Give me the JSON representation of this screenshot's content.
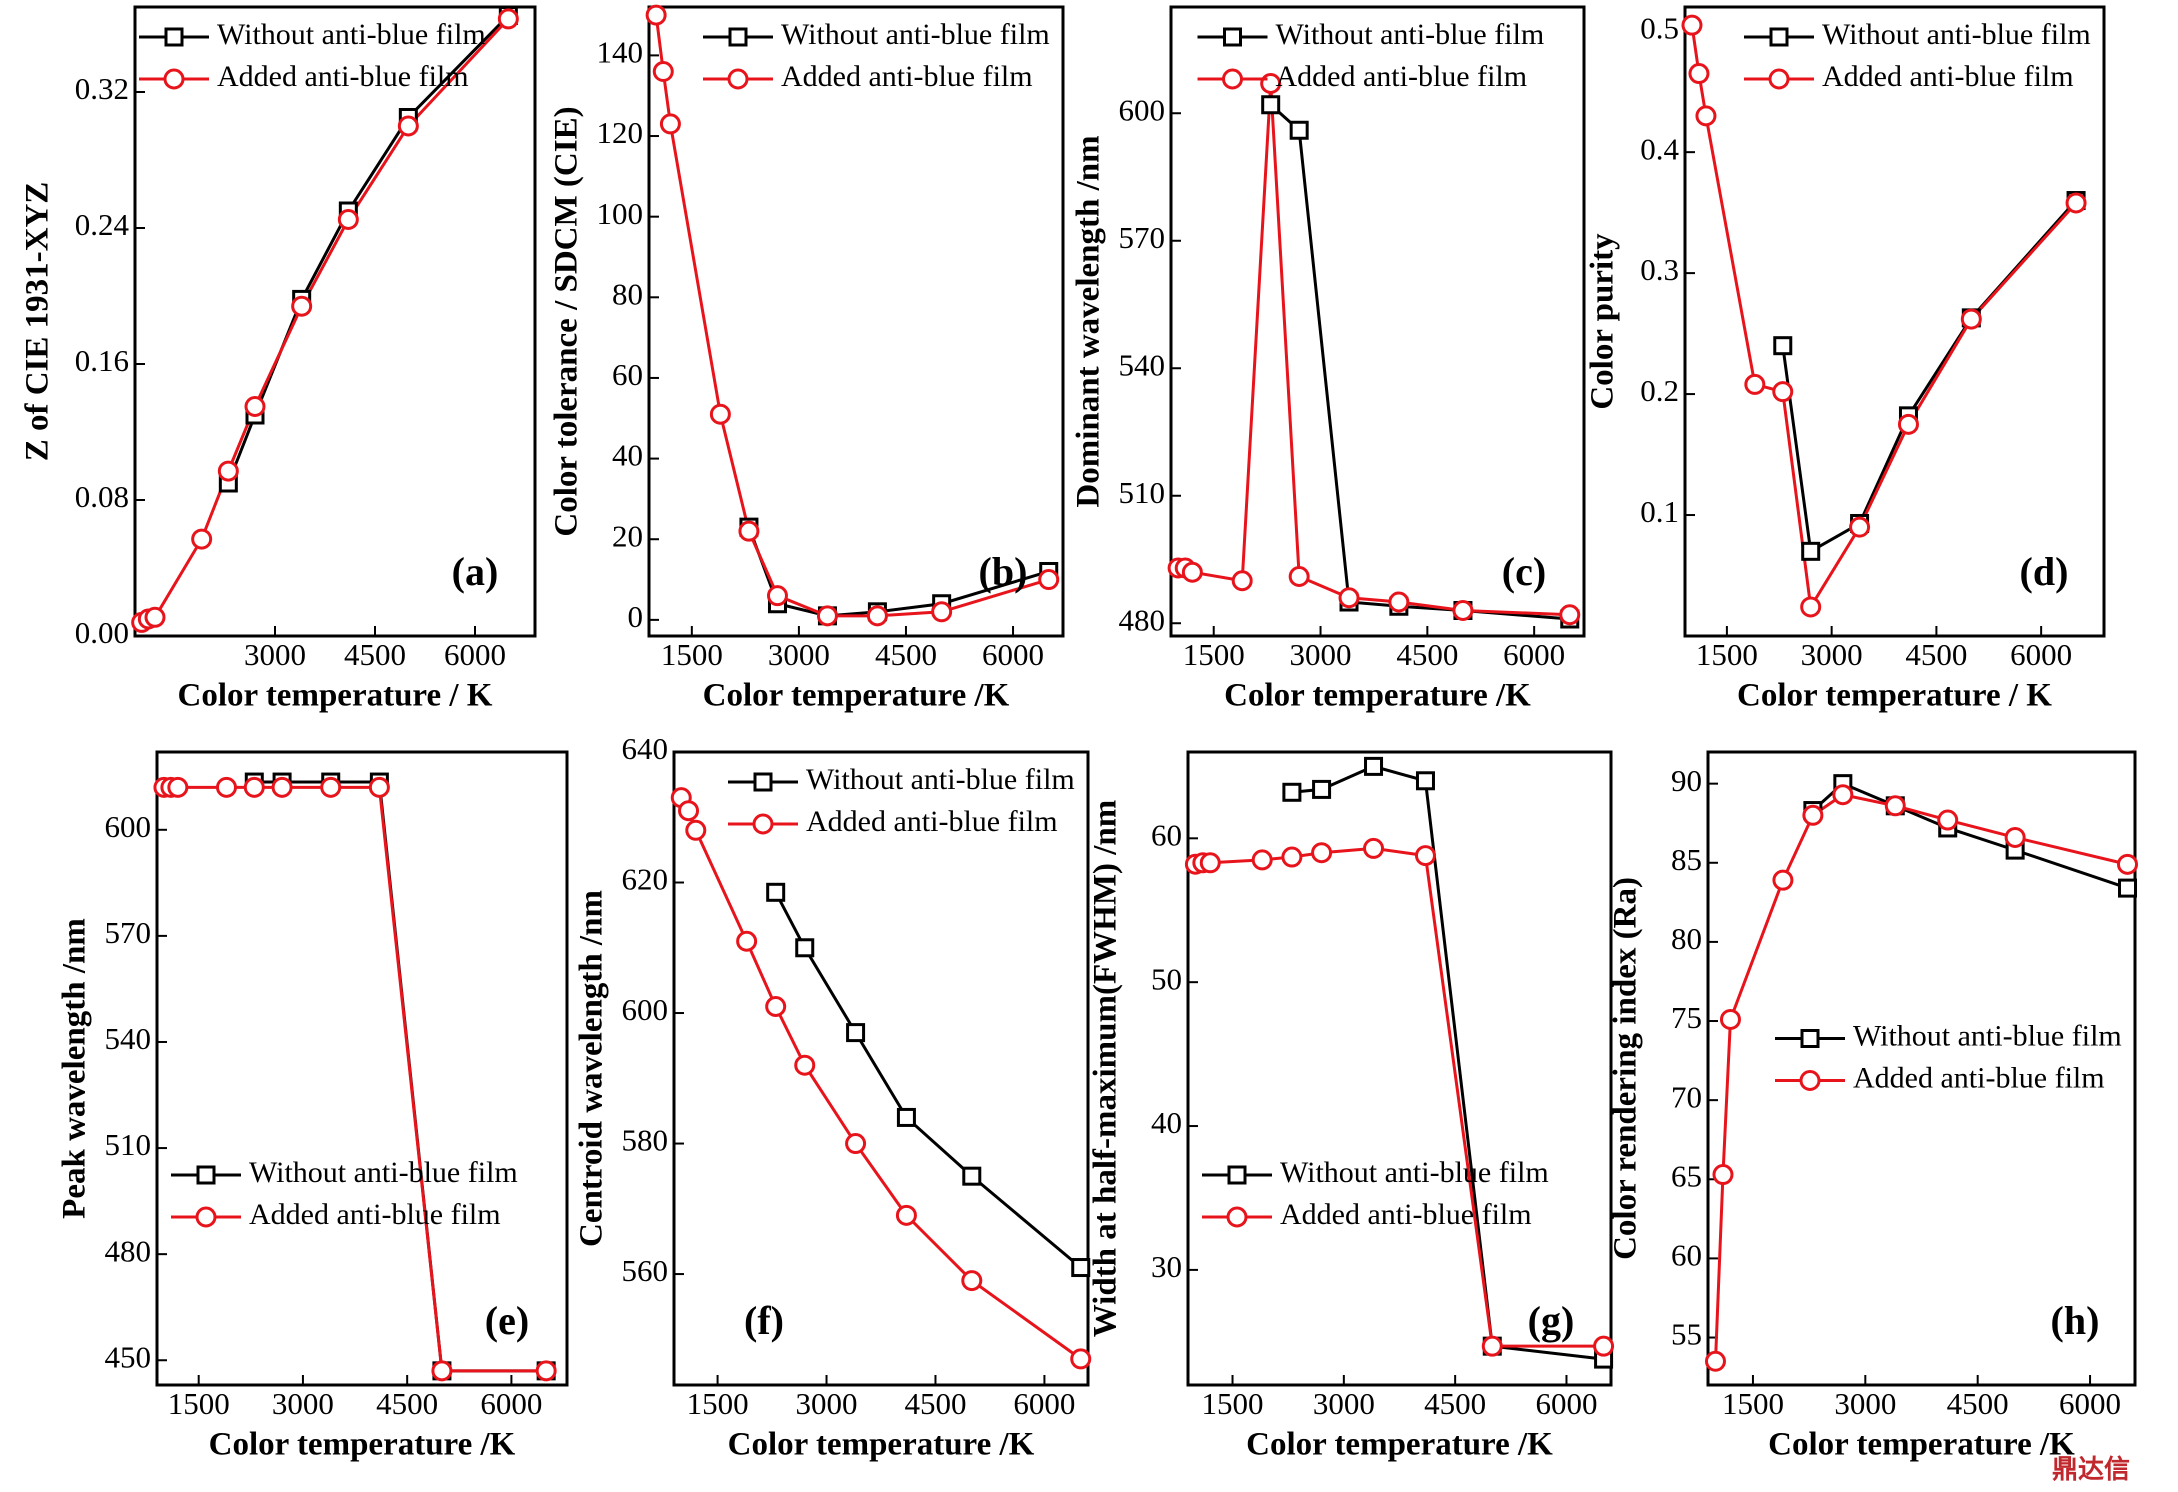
{
  "watermark": "鼎达信",
  "chart_data": [
    {
      "type": "line",
      "panel": "(a)",
      "xlabel": "Color temperature / K",
      "ylabel": "Z of CIE 1931-XYZ",
      "x": [
        1000,
        1100,
        1200,
        1900,
        2300,
        2700,
        3400,
        4100,
        5000,
        6500
      ],
      "series": [
        {
          "name": "Without anti-blue film",
          "color": "#000000",
          "marker": "square",
          "values": [
            null,
            null,
            null,
            null,
            0.09,
            0.13,
            0.198,
            0.25,
            0.305,
            0.365
          ]
        },
        {
          "name": "Added anti-blue film",
          "color": "#e8141c",
          "marker": "circle",
          "values": [
            0.008,
            0.01,
            0.011,
            0.057,
            0.097,
            0.135,
            0.194,
            0.245,
            0.3,
            0.363
          ]
        }
      ],
      "xlim": [
        900,
        6900
      ],
      "xticks": [
        3000,
        4500,
        6000
      ],
      "ylim": [
        0,
        0.37
      ],
      "yticks": [
        {
          "value": 0,
          "label": "0.00"
        },
        {
          "value": 0.08,
          "label": "0.08"
        },
        {
          "value": 0.16,
          "label": "0.16"
        },
        {
          "value": 0.24,
          "label": "0.24"
        },
        {
          "value": 0.32,
          "label": "0.32"
        }
      ],
      "legend": "upper left"
    },
    {
      "type": "line",
      "panel": "(b)",
      "xlabel": "Color temperature /K",
      "ylabel": "Color tolerance / SDCM (CIE)",
      "x": [
        1000,
        1100,
        1200,
        1900,
        2300,
        2700,
        3400,
        4100,
        5000,
        6500
      ],
      "series": [
        {
          "name": "Without anti-blue film",
          "color": "#000000",
          "marker": "square",
          "values": [
            null,
            null,
            null,
            null,
            23,
            4,
            1,
            2,
            4,
            12
          ]
        },
        {
          "name": "Added anti-blue film",
          "color": "#e8141c",
          "marker": "circle",
          "values": [
            150,
            136,
            123,
            51,
            22,
            6,
            1,
            1,
            2,
            10
          ]
        }
      ],
      "xlim": [
        900,
        6700
      ],
      "xticks": [
        1500,
        3000,
        4500,
        6000
      ],
      "ylim": [
        -4,
        152
      ],
      "yticks": [
        0,
        20,
        40,
        60,
        80,
        100,
        120,
        140
      ],
      "legend": "upper right"
    },
    {
      "type": "line",
      "panel": "(c)",
      "xlabel": "Color temperature /K",
      "ylabel": "Dominant wavelength /nm",
      "x": [
        1000,
        1100,
        1200,
        1900,
        2300,
        2700,
        3400,
        4100,
        5000,
        6500
      ],
      "series": [
        {
          "name": "Without anti-blue film",
          "color": "#000000",
          "marker": "square",
          "values": [
            null,
            null,
            null,
            null,
            602,
            596,
            485,
            484,
            483,
            481
          ]
        },
        {
          "name": "Added anti-blue film",
          "color": "#e8141c",
          "marker": "circle",
          "values": [
            493,
            493,
            492,
            490,
            607,
            491,
            486,
            485,
            483,
            482
          ]
        }
      ],
      "xlim": [
        900,
        6700
      ],
      "xticks": [
        1500,
        3000,
        4500,
        6000
      ],
      "ylim": [
        477,
        625
      ],
      "yticks": [
        480,
        510,
        540,
        570,
        600
      ],
      "legend": "upper center"
    },
    {
      "type": "line",
      "panel": "(d)",
      "xlabel": "Color temperature / K",
      "ylabel": "Color purity",
      "x": [
        1000,
        1100,
        1200,
        1900,
        2300,
        2700,
        3400,
        4100,
        5000,
        6500
      ],
      "series": [
        {
          "name": "Without anti-blue film",
          "color": "#000000",
          "marker": "square",
          "values": [
            null,
            null,
            null,
            null,
            0.24,
            0.07,
            0.093,
            0.182,
            0.263,
            0.36
          ]
        },
        {
          "name": "Added anti-blue film",
          "color": "#e8141c",
          "marker": "circle",
          "values": [
            0.505,
            0.465,
            0.43,
            0.208,
            0.202,
            0.024,
            0.09,
            0.175,
            0.262,
            0.358
          ]
        }
      ],
      "xlim": [
        900,
        6900
      ],
      "xticks": [
        1500,
        3000,
        4500,
        6000
      ],
      "ylim": [
        0,
        0.52
      ],
      "yticks": [
        0.1,
        0.2,
        0.3,
        0.4,
        0.5
      ],
      "legend": "upper right"
    },
    {
      "type": "line",
      "panel": "(e)",
      "xlabel": "Color temperature /K",
      "ylabel": "Peak wavelength /nm",
      "x": [
        1000,
        1100,
        1200,
        1900,
        2300,
        2700,
        3400,
        4100,
        5000,
        6500
      ],
      "series": [
        {
          "name": "Without anti-blue film",
          "color": "#000000",
          "marker": "square",
          "values": [
            null,
            null,
            null,
            null,
            613.5,
            613.5,
            613.5,
            613.5,
            447,
            447
          ]
        },
        {
          "name": "Added anti-blue film",
          "color": "#e8141c",
          "marker": "circle",
          "values": [
            612,
            612,
            612,
            612,
            612,
            612,
            612,
            612,
            447,
            447
          ]
        }
      ],
      "xlim": [
        900,
        6800
      ],
      "xticks": [
        1500,
        3000,
        4500,
        6000
      ],
      "ylim": [
        443,
        622
      ],
      "yticks": [
        450,
        480,
        510,
        540,
        570,
        600
      ],
      "legend": "lower left"
    },
    {
      "type": "line",
      "panel": "(f)",
      "xlabel": "Color temperature /K",
      "ylabel": "Centroid wavelength /nm",
      "x": [
        1000,
        1100,
        1200,
        1900,
        2300,
        2700,
        3400,
        4100,
        5000,
        6500
      ],
      "series": [
        {
          "name": "Without anti-blue film",
          "color": "#000000",
          "marker": "square",
          "values": [
            null,
            null,
            null,
            null,
            618.5,
            610,
            597,
            584,
            575,
            561
          ]
        },
        {
          "name": "Added anti-blue film",
          "color": "#e8141c",
          "marker": "circle",
          "values": [
            633,
            631,
            628,
            611,
            601,
            592,
            580,
            569,
            559,
            547
          ]
        }
      ],
      "xlim": [
        900,
        6600
      ],
      "xticks": [
        1500,
        3000,
        4500,
        6000
      ],
      "ylim": [
        543,
        640
      ],
      "yticks": [
        560,
        580,
        600,
        620,
        640
      ],
      "legend": "upper right"
    },
    {
      "type": "line",
      "panel": "(g)",
      "xlabel": "Color temperature /K",
      "ylabel": "Width at half-maximum(FWHM) /nm",
      "x": [
        1000,
        1100,
        1200,
        1900,
        2300,
        2700,
        3400,
        4100,
        5000,
        6500
      ],
      "series": [
        {
          "name": "Without anti-blue film",
          "color": "#000000",
          "marker": "square",
          "values": [
            null,
            null,
            null,
            null,
            63.2,
            63.4,
            65,
            64,
            24.7,
            23.8
          ]
        },
        {
          "name": "Added anti-blue film",
          "color": "#e8141c",
          "marker": "circle",
          "values": [
            58.2,
            58.3,
            58.3,
            58.5,
            58.7,
            59,
            59.3,
            58.8,
            24.7,
            24.7
          ]
        }
      ],
      "xlim": [
        900,
        6600
      ],
      "xticks": [
        1500,
        3000,
        4500,
        6000
      ],
      "ylim": [
        22,
        66
      ],
      "yticks": [
        30,
        40,
        50,
        60
      ],
      "legend": "lower left"
    },
    {
      "type": "line",
      "panel": "(h)",
      "xlabel": "Color temperature /K",
      "ylabel": "Color rendering index (Ra)",
      "x": [
        1000,
        1100,
        1200,
        1900,
        2300,
        2700,
        3400,
        4100,
        5000,
        6500
      ],
      "series": [
        {
          "name": "Without anti-blue film",
          "color": "#000000",
          "marker": "square",
          "values": [
            null,
            null,
            null,
            null,
            88.3,
            90,
            88.6,
            87.2,
            85.8,
            83.4
          ]
        },
        {
          "name": "Added anti-blue film",
          "color": "#e8141c",
          "marker": "circle",
          "values": [
            53.5,
            65.3,
            75.1,
            83.9,
            88,
            89.3,
            88.6,
            87.7,
            86.6,
            84.9
          ]
        }
      ],
      "xlim": [
        900,
        6600
      ],
      "xticks": [
        1500,
        3000,
        4500,
        6000
      ],
      "ylim": [
        52,
        92
      ],
      "yticks": [
        55,
        60,
        65,
        70,
        75,
        80,
        85,
        90
      ],
      "legend": "center right"
    }
  ]
}
